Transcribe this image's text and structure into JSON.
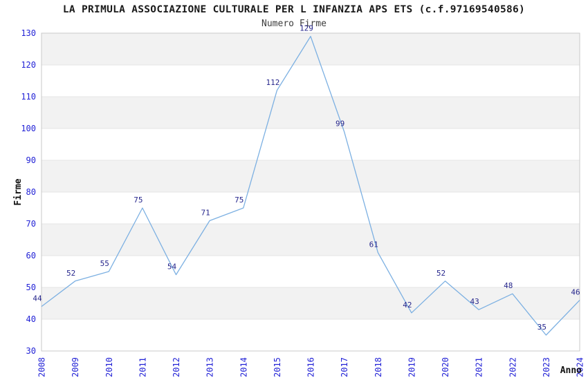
{
  "chart_data": {
    "type": "line",
    "title": "LA PRIMULA ASSOCIAZIONE CULTURALE PER L INFANZIA APS ETS (c.f.97169540586)",
    "subtitle": "Numero Firme",
    "xlabel": "Anno",
    "ylabel": "Firme",
    "x": [
      2008,
      2009,
      2010,
      2011,
      2012,
      2013,
      2014,
      2015,
      2016,
      2017,
      2018,
      2019,
      2020,
      2021,
      2022,
      2023,
      2024
    ],
    "values": [
      44,
      52,
      55,
      75,
      54,
      71,
      75,
      112,
      129,
      99,
      61,
      42,
      52,
      43,
      48,
      35,
      46
    ],
    "ylim": [
      30,
      130
    ],
    "ytick_step": 10,
    "yticks": [
      30,
      40,
      50,
      60,
      70,
      80,
      90,
      100,
      110,
      120,
      130
    ],
    "grid": "horizontal-bands",
    "legend": "none",
    "colors": {
      "line": "#7cb0e2",
      "tick_label": "#2222d6",
      "data_label": "#26268c",
      "band": "#f2f2f2",
      "gridline": "#e4e4e4",
      "plot_border": "#c9c9c9",
      "title": "#1a1a1a",
      "subtitle": "#3c3c3c",
      "axis_label": "#111111"
    }
  }
}
